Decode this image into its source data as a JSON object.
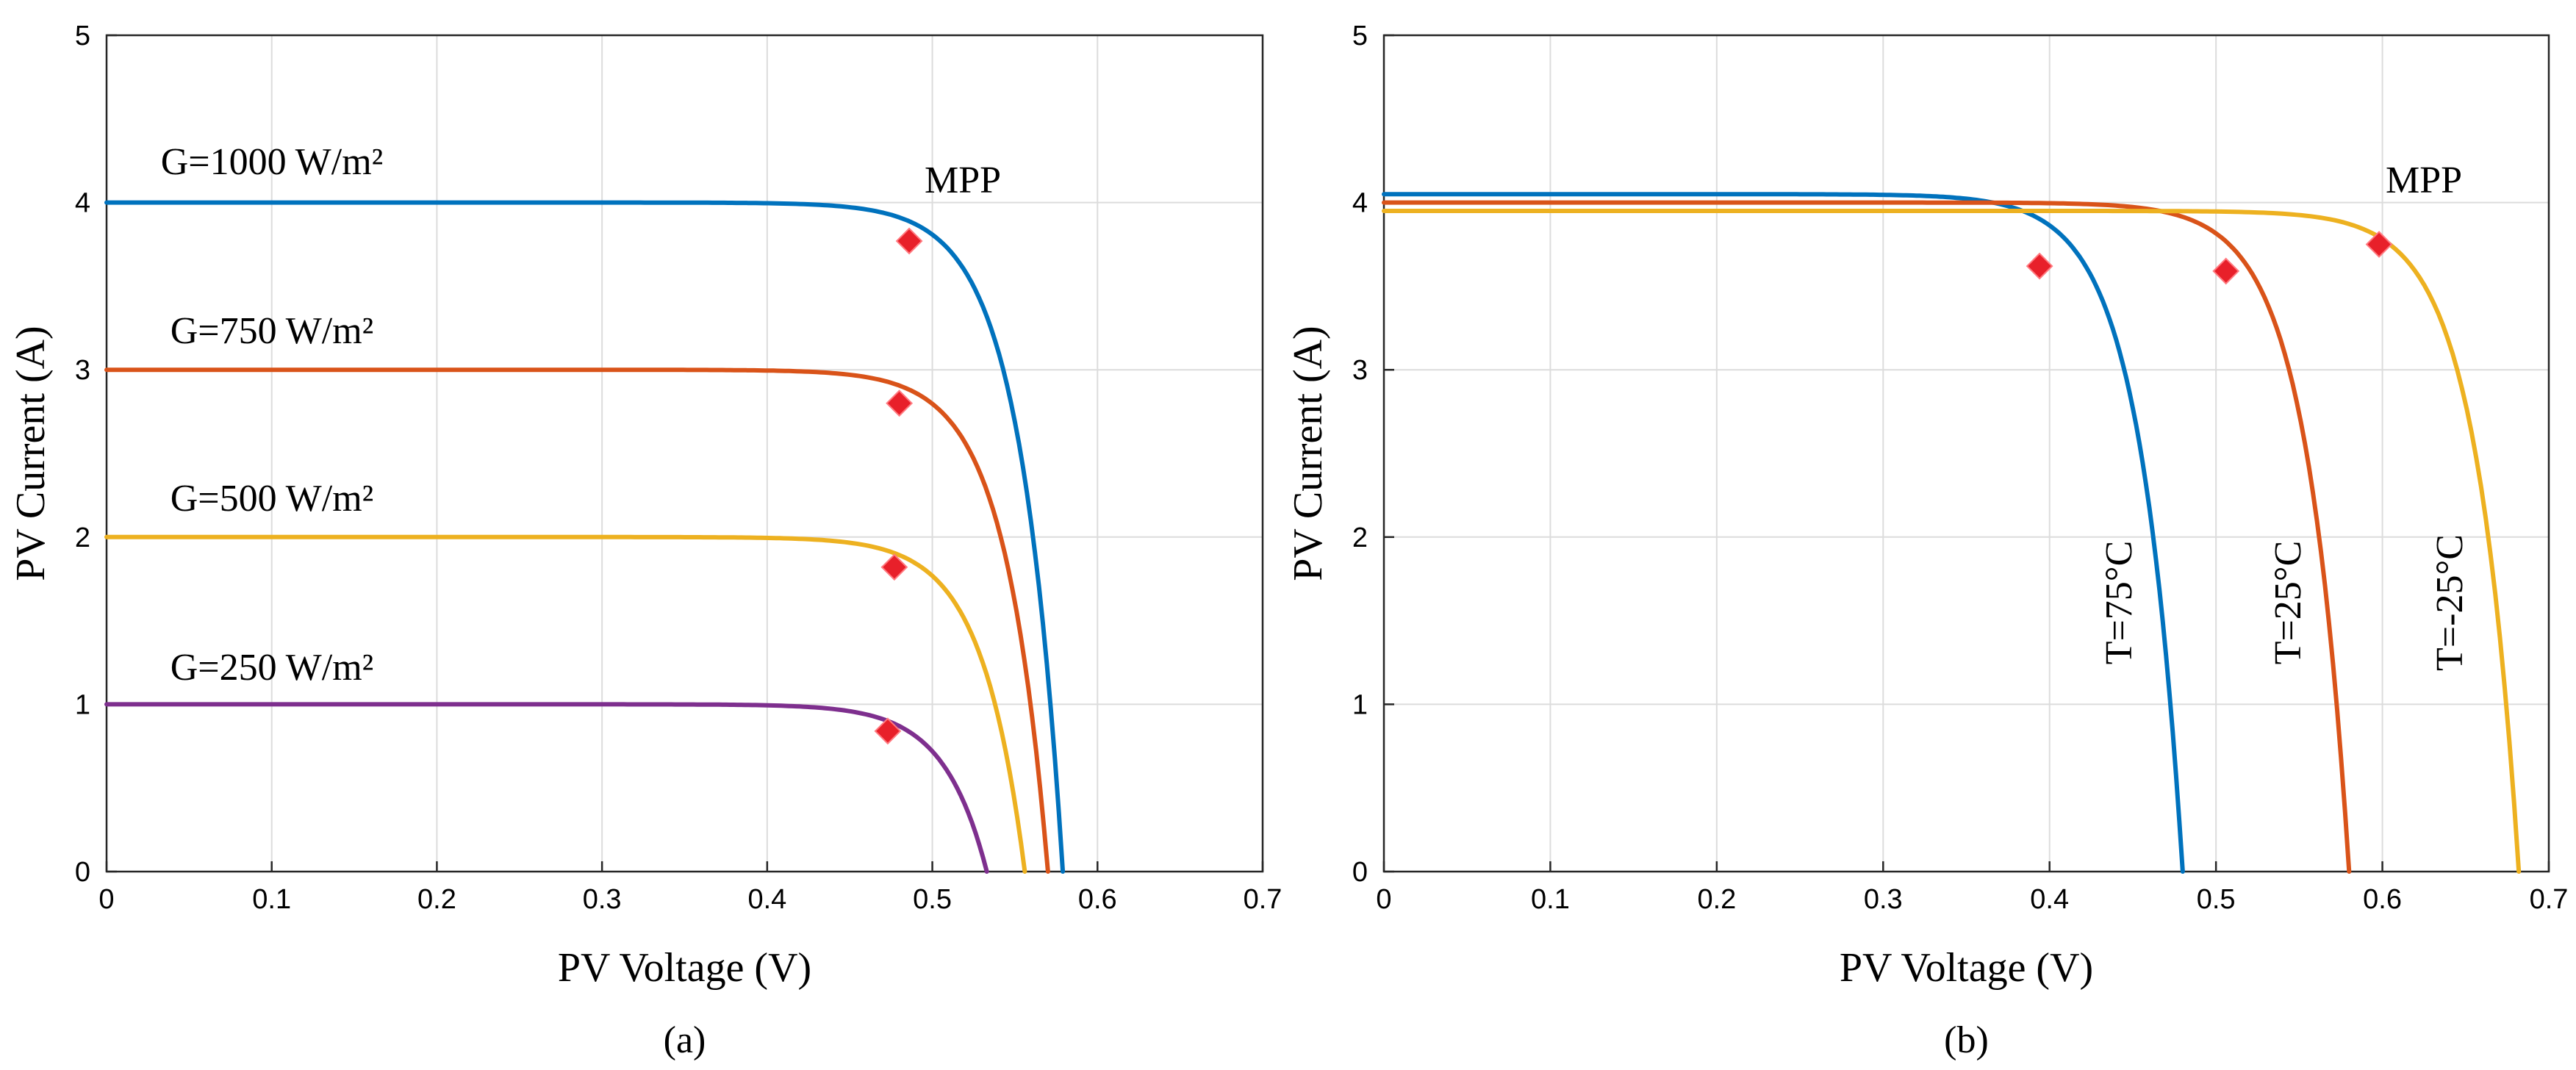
{
  "chart_data": [
    {
      "type": "line",
      "caption": "(a)",
      "xlabel": "PV Voltage (V)",
      "ylabel": "PV Current (A)",
      "xlim": [
        0,
        0.7
      ],
      "ylim": [
        0,
        5
      ],
      "xticks": [
        "0",
        "0.1",
        "0.2",
        "0.3",
        "0.4",
        "0.5",
        "0.6",
        "0.7"
      ],
      "yticks": [
        "0",
        "1",
        "2",
        "3",
        "4",
        "5"
      ],
      "grid": true,
      "series": [
        {
          "name": "G=1000 W/m²",
          "color": "#0072BD",
          "isc": 4.0,
          "voc": 0.579,
          "mpp": [
            0.486,
            3.77
          ]
        },
        {
          "name": "G=750 W/m²",
          "color": "#D95319",
          "isc": 3.0,
          "voc": 0.57,
          "mpp": [
            0.48,
            2.8
          ]
        },
        {
          "name": "G=500 W/m²",
          "color": "#EDB120",
          "isc": 2.0,
          "voc": 0.556,
          "mpp": [
            0.477,
            1.82
          ]
        },
        {
          "name": "G=250 W/m²",
          "color": "#7E2F8E",
          "isc": 1.0,
          "voc": 0.533,
          "mpp": [
            0.473,
            0.84
          ]
        }
      ],
      "annotations": [
        {
          "text": "MPP"
        }
      ]
    },
    {
      "type": "line",
      "caption": "(b)",
      "xlabel": "PV Voltage (V)",
      "ylabel": "PV Current (A)",
      "xlim": [
        0,
        0.7
      ],
      "ylim": [
        0,
        5
      ],
      "xticks": [
        "0",
        "0.1",
        "0.2",
        "0.3",
        "0.4",
        "0.5",
        "0.6",
        "0.7"
      ],
      "yticks": [
        "0",
        "1",
        "2",
        "3",
        "4",
        "5"
      ],
      "grid": true,
      "series": [
        {
          "name": "T=75°C",
          "color": "#0072BD",
          "isc": 4.05,
          "voc": 0.48,
          "mpp": [
            0.394,
            3.62
          ]
        },
        {
          "name": "T=25°C",
          "color": "#D95319",
          "isc": 4.0,
          "voc": 0.58,
          "mpp": [
            0.506,
            3.59
          ]
        },
        {
          "name": "T=-25°C",
          "color": "#EDB120",
          "isc": 3.95,
          "voc": 0.682,
          "mpp": [
            0.598,
            3.75
          ]
        }
      ],
      "annotations": [
        {
          "text": "MPP"
        }
      ]
    }
  ]
}
